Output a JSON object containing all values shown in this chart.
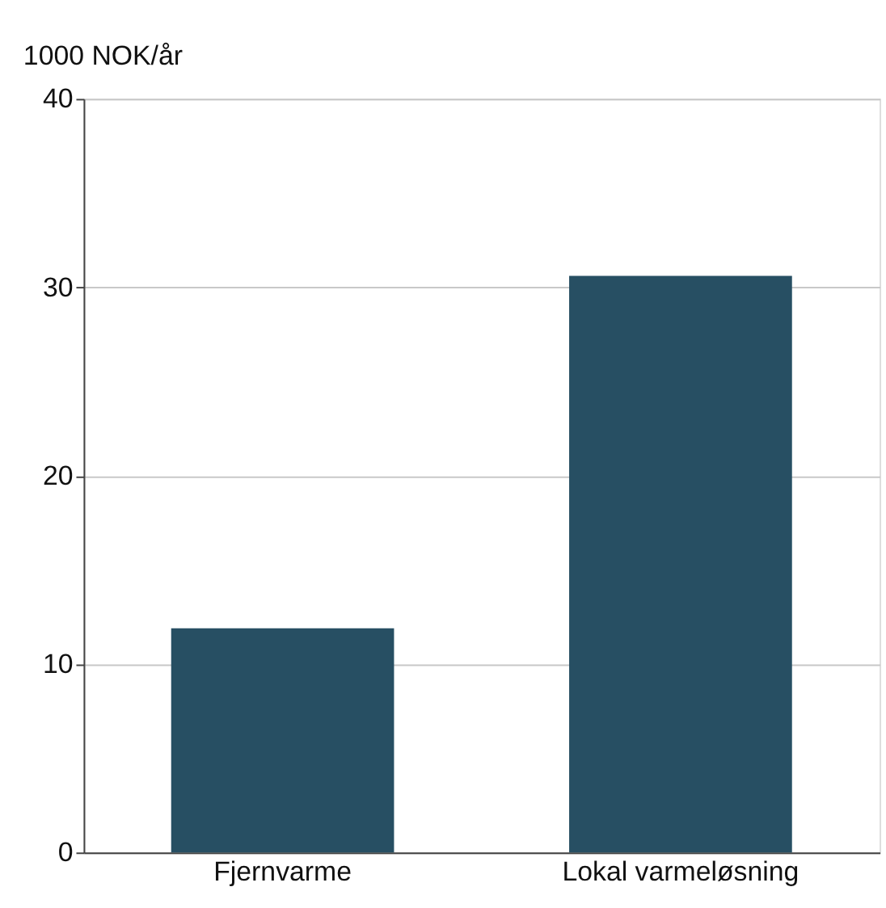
{
  "chart_data": {
    "type": "bar",
    "ylabel": "1000 NOK/år",
    "categories": [
      "Fjernvarme",
      "Lokal varmeløsning"
    ],
    "values": [
      11.9,
      30.6
    ],
    "color": "#274f63",
    "ylim": [
      0,
      40
    ],
    "yticks": [
      0,
      10,
      20,
      30,
      40
    ],
    "grid": "y"
  }
}
